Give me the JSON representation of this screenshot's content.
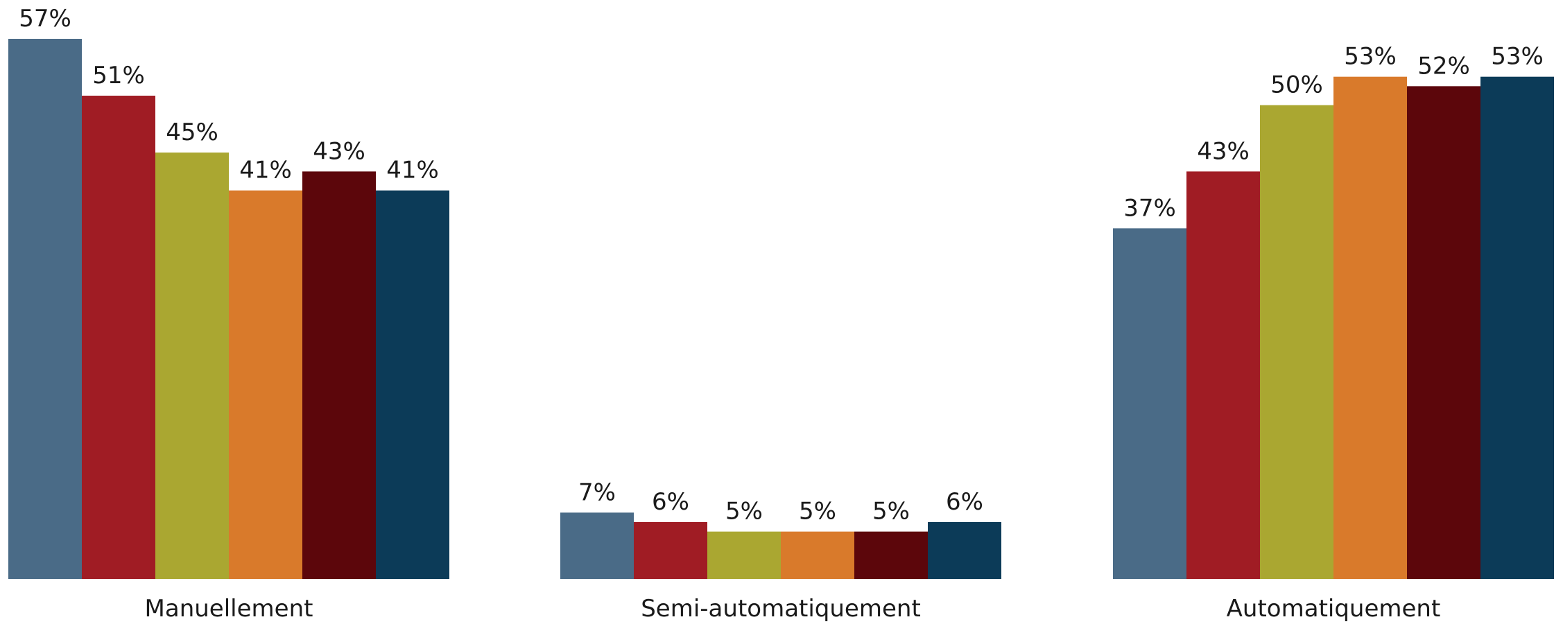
{
  "chart_data": {
    "type": "bar",
    "title": "",
    "xlabel": "",
    "ylabel": "",
    "ylim": [
      0,
      57
    ],
    "grid": false,
    "legend": "none",
    "categories": [
      "Manuellement",
      "Semi-automatiquement",
      "Automatiquement"
    ],
    "series": [
      {
        "color": "#4a6b87",
        "values": [
          57,
          7,
          37
        ],
        "labels": [
          "57%",
          "7%",
          "37%"
        ]
      },
      {
        "color": "#a01c24",
        "values": [
          51,
          6,
          43
        ],
        "labels": [
          "51%",
          "6%",
          "43%"
        ]
      },
      {
        "color": "#aaa731",
        "values": [
          45,
          5,
          50
        ],
        "labels": [
          "45%",
          "5%",
          "50%"
        ]
      },
      {
        "color": "#d97a2b",
        "values": [
          41,
          5,
          53
        ],
        "labels": [
          "41%",
          "5%",
          "53%"
        ]
      },
      {
        "color": "#5c060b",
        "values": [
          43,
          5,
          52
        ],
        "labels": [
          "43%",
          "5%",
          "52%"
        ]
      },
      {
        "color": "#0c3b58",
        "values": [
          41,
          6,
          53
        ],
        "labels": [
          "41%",
          "6%",
          "53%"
        ]
      }
    ]
  }
}
